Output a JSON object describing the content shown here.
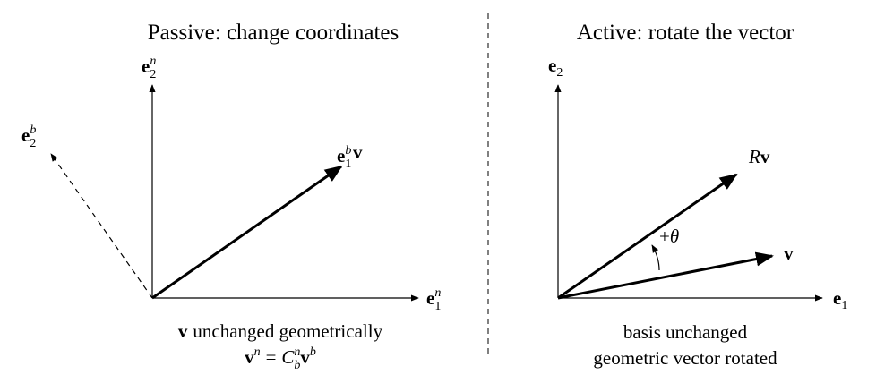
{
  "left": {
    "title": "Passive: change coordinates",
    "e1n": {
      "base": "e",
      "sub": "1",
      "sup": "n"
    },
    "e2n": {
      "base": "e",
      "sub": "2",
      "sup": "n"
    },
    "e2b": {
      "base": "e",
      "sub": "2",
      "sup": "b"
    },
    "e1b": {
      "base": "e",
      "sub": "1",
      "sup": "b"
    },
    "v": "v",
    "caption": {
      "symbol": "v",
      "text": "unchanged geometrically"
    },
    "equation": {
      "lhs": {
        "base": "v",
        "sup": "n"
      },
      "op": "=",
      "rhs": [
        {
          "base": "C",
          "sub": "b",
          "sup": "n"
        },
        {
          "base": "v",
          "sup": "b"
        }
      ]
    }
  },
  "right": {
    "title": "Active: rotate the vector",
    "e1": {
      "base": "e",
      "sub": "1"
    },
    "e2": {
      "base": "e",
      "sub": "2"
    },
    "rv": {
      "base": "R",
      "symbol": "v"
    },
    "v": "v",
    "angle": {
      "sign": "+",
      "symbol": "θ"
    },
    "captions": [
      "basis unchanged",
      "geometric vector rotated"
    ]
  }
}
